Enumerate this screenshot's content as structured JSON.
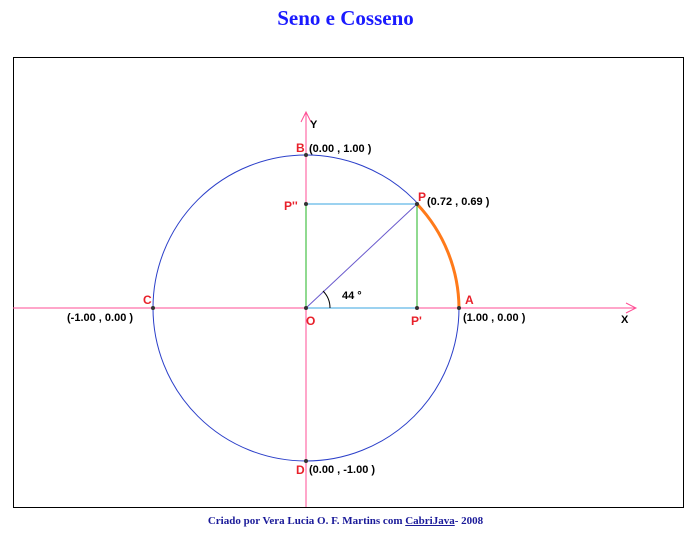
{
  "header": {
    "title": "Seno e Cosseno"
  },
  "diagram": {
    "axes": {
      "x": "X",
      "y": "Y"
    },
    "points": {
      "A": "A",
      "B": "B",
      "C": "C",
      "D": "D",
      "O": "O",
      "P": "P",
      "P1": "P'",
      "P2": "P''"
    },
    "coordinates": {
      "A": "(1.00 , 0.00 )",
      "B": "(0.00 , 1.00 )",
      "C": "(-1.00 , 0.00 )",
      "D": "(0.00 , -1.00 )",
      "P": "(0.72 , 0.69 )"
    },
    "angle": "44 °"
  },
  "footer": {
    "text": "Criado por Vera Lucia O. F. Martins com",
    "link": "CabriJava",
    "suffix": "- 2008"
  }
}
